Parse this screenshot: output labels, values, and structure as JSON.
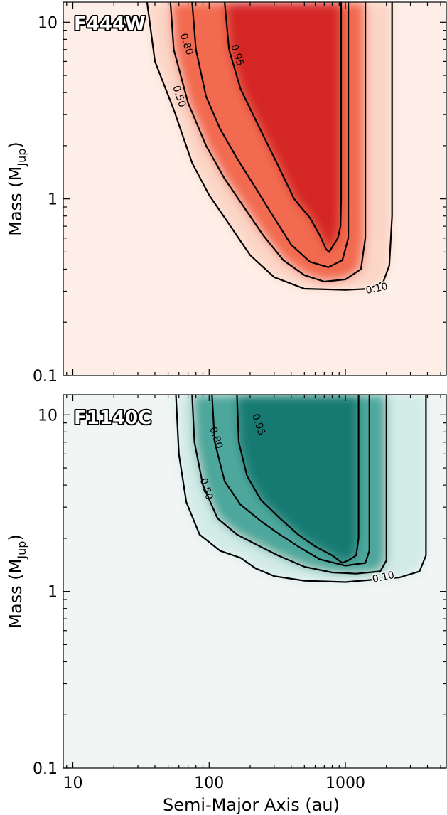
{
  "chart_data": [
    {
      "type": "heatmap",
      "panel_label": "F444W",
      "xlabel": "",
      "ylabel": "Mass (M",
      "ylabel_sub": "Jup",
      "ylabel_close": ")",
      "xscale": "log",
      "yscale": "log",
      "xlim": [
        8.5,
        5500
      ],
      "ylim": [
        0.1,
        13
      ],
      "y_ticks": [
        {
          "value": 10,
          "label": "10"
        },
        {
          "value": 1,
          "label": "1"
        },
        {
          "value": 0.1,
          "label": "0.1"
        }
      ],
      "x_tick_labels_shown": false,
      "colors": {
        "background": "#fdefe8",
        "low": "#fbd5c6",
        "mid": "#f26a4f",
        "high": "#d52826"
      },
      "contour_levels": [
        "0.10",
        "0.50",
        "0.80",
        "0.95"
      ],
      "contours": [
        {
          "level": "0.10",
          "points": [
            [
              35,
              13
            ],
            [
              40,
              6
            ],
            [
              55,
              3.2
            ],
            [
              75,
              1.6
            ],
            [
              100,
              1.05
            ],
            [
              140,
              0.72
            ],
            [
              200,
              0.48
            ],
            [
              300,
              0.36
            ],
            [
              500,
              0.31
            ],
            [
              1000,
              0.305
            ],
            [
              1500,
              0.31
            ],
            [
              1900,
              0.34
            ],
            [
              2100,
              0.42
            ],
            [
              2200,
              0.8
            ],
            [
              2200,
              2
            ],
            [
              2200,
              13
            ]
          ]
        },
        {
          "level": "0.50",
          "points": [
            [
              52,
              13
            ],
            [
              55,
              7
            ],
            [
              70,
              3.5
            ],
            [
              95,
              2
            ],
            [
              130,
              1.3
            ],
            [
              180,
              0.9
            ],
            [
              250,
              0.62
            ],
            [
              350,
              0.45
            ],
            [
              500,
              0.37
            ],
            [
              700,
              0.34
            ],
            [
              1000,
              0.35
            ],
            [
              1300,
              0.4
            ],
            [
              1400,
              0.6
            ],
            [
              1400,
              2
            ],
            [
              1400,
              13
            ]
          ]
        },
        {
          "level": "0.80",
          "points": [
            [
              75,
              13
            ],
            [
              80,
              7
            ],
            [
              95,
              3.8
            ],
            [
              120,
              2.5
            ],
            [
              160,
              1.7
            ],
            [
              220,
              1.15
            ],
            [
              300,
              0.78
            ],
            [
              400,
              0.55
            ],
            [
              550,
              0.44
            ],
            [
              750,
              0.41
            ],
            [
              950,
              0.45
            ],
            [
              1050,
              0.6
            ],
            [
              1050,
              2
            ],
            [
              1050,
              13
            ]
          ]
        },
        {
          "level": "0.95",
          "points": [
            [
              130,
              13
            ],
            [
              140,
              7
            ],
            [
              170,
              4.2
            ],
            [
              230,
              2.6
            ],
            [
              320,
              1.55
            ],
            [
              420,
              1.0
            ],
            [
              550,
              0.78
            ],
            [
              650,
              0.62
            ],
            [
              720,
              0.52
            ],
            [
              760,
              0.5
            ],
            [
              820,
              0.55
            ],
            [
              880,
              0.6
            ],
            [
              920,
              0.7
            ],
            [
              930,
              1.0
            ],
            [
              930,
              13
            ]
          ]
        }
      ],
      "contour_label_positions": [
        {
          "level": "0.10",
          "x": 1700,
          "y": 0.31
        },
        {
          "level": "0.50",
          "x": 60,
          "y": 3.8
        },
        {
          "level": "0.80",
          "x": 68,
          "y": 7.5
        },
        {
          "level": "0.95",
          "x": 160,
          "y": 6.5
        }
      ]
    },
    {
      "type": "heatmap",
      "panel_label": "F1140C",
      "xlabel": "Semi-Major Axis (au)",
      "ylabel": "Mass (M",
      "ylabel_sub": "Jup",
      "ylabel_close": ")",
      "xscale": "log",
      "yscale": "log",
      "xlim": [
        8.5,
        5500
      ],
      "ylim": [
        0.1,
        13
      ],
      "x_ticks": [
        {
          "value": 10,
          "label": "10"
        },
        {
          "value": 100,
          "label": "100"
        },
        {
          "value": 1000,
          "label": "1000"
        }
      ],
      "y_ticks": [
        {
          "value": 10,
          "label": "10"
        },
        {
          "value": 1,
          "label": "1"
        },
        {
          "value": 0.1,
          "label": "0.1"
        }
      ],
      "colors": {
        "background": "#f1f5f4",
        "low": "#d2ebe7",
        "mid": "#4ea79c",
        "high": "#177a73"
      },
      "contour_levels": [
        "0.10",
        "0.50",
        "0.80",
        "0.95"
      ],
      "contours": [
        {
          "level": "0.10",
          "points": [
            [
              57,
              13
            ],
            [
              60,
              6
            ],
            [
              68,
              3.2
            ],
            [
              85,
              2.1
            ],
            [
              120,
              1.7
            ],
            [
              170,
              1.55
            ],
            [
              220,
              1.35
            ],
            [
              300,
              1.22
            ],
            [
              500,
              1.15
            ],
            [
              1000,
              1.13
            ],
            [
              1500,
              1.16
            ],
            [
              2500,
              1.2
            ],
            [
              3500,
              1.3
            ],
            [
              3900,
              1.6
            ],
            [
              3900,
              5
            ],
            [
              3900,
              13
            ]
          ]
        },
        {
          "level": "0.50",
          "points": [
            [
              75,
              13
            ],
            [
              78,
              7
            ],
            [
              90,
              4
            ],
            [
              115,
              2.6
            ],
            [
              160,
              2.1
            ],
            [
              220,
              1.85
            ],
            [
              320,
              1.6
            ],
            [
              500,
              1.38
            ],
            [
              800,
              1.28
            ],
            [
              1200,
              1.26
            ],
            [
              1800,
              1.3
            ],
            [
              2000,
              1.5
            ],
            [
              2000,
              5
            ],
            [
              2000,
              13
            ]
          ]
        },
        {
          "level": "0.80",
          "points": [
            [
              105,
              13
            ],
            [
              110,
              7
            ],
            [
              130,
              4.2
            ],
            [
              170,
              3.1
            ],
            [
              240,
              2.5
            ],
            [
              330,
              2.1
            ],
            [
              450,
              1.8
            ],
            [
              650,
              1.52
            ],
            [
              1000,
              1.4
            ],
            [
              1400,
              1.45
            ],
            [
              1500,
              1.7
            ],
            [
              1500,
              5
            ],
            [
              1500,
              13
            ]
          ]
        },
        {
          "level": "0.95",
          "points": [
            [
              160,
              13
            ],
            [
              165,
              7
            ],
            [
              190,
              4.5
            ],
            [
              240,
              3.3
            ],
            [
              330,
              2.6
            ],
            [
              450,
              2.1
            ],
            [
              600,
              1.8
            ],
            [
              800,
              1.6
            ],
            [
              950,
              1.45
            ],
            [
              1050,
              1.5
            ],
            [
              1200,
              1.6
            ],
            [
              1250,
              2
            ],
            [
              1250,
              13
            ]
          ]
        }
      ],
      "contour_label_positions": [
        {
          "level": "0.10",
          "x": 1900,
          "y": 1.2
        },
        {
          "level": "0.50",
          "x": 95,
          "y": 3.8
        },
        {
          "level": "0.80",
          "x": 112,
          "y": 7.4
        },
        {
          "level": "0.95",
          "x": 230,
          "y": 8.8
        }
      ]
    }
  ]
}
